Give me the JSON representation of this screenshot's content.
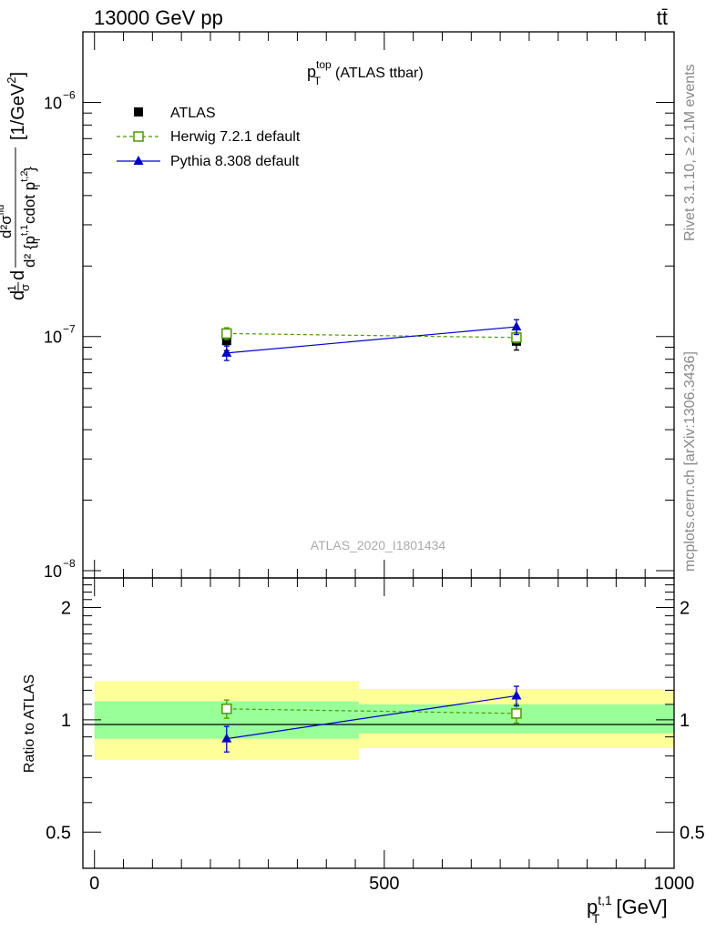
{
  "header": {
    "left": "13000 GeV pp",
    "right": "tt̄"
  },
  "side_text": {
    "top": "Rivet 3.1.10, ≥ 2.1M events",
    "bottom": "mcplots.cern.ch [arXiv:1306.3436]"
  },
  "chart_data": {
    "type": "line",
    "title": "p_T^top (ATLAS ttbar)",
    "title_main": "p",
    "title_sup": "top",
    "title_sub": "T",
    "title_suffix": "(ATLAS ttbar)",
    "analysis_label": "ATLAS_2020_I1801434",
    "xlabel": "p_T^{t,1} [GeV]",
    "xlabel_main": "p",
    "xlabel_sup": "t,1",
    "xlabel_sub": "T",
    "xlabel_suffix": "[GeV]",
    "ylabel": "d^2σ^fid / d^2{p_T^{t,1} cdot p_T^{t,2}} [1/GeV^2]",
    "ylabel_parts": {
      "d1": "d",
      "frac_num": "1",
      "frac_den": "σ",
      "d2": "d",
      "num": "d²σ",
      "num_sup": "fid",
      "den": "d² {p",
      "den_sup1": "t,1",
      "den_sub1": "T",
      "den_mid": "cdot p",
      "den_sup2": "t,2",
      "den_sub2": "T",
      "den_end": "}",
      "units": "[1/GeV",
      "units_sup": "2",
      "units_end": "]"
    },
    "xlim": [
      -20,
      1000
    ],
    "xticks": [
      0,
      500,
      1000
    ],
    "ylim": [
      1e-08,
      2e-06
    ],
    "yscale": "log",
    "yticks_major": [
      {
        "value": 1e-08,
        "base": "10",
        "exp": "−8"
      },
      {
        "value": 1e-07,
        "base": "10",
        "exp": "−7"
      },
      {
        "value": 1e-06,
        "base": "10",
        "exp": "−6"
      }
    ],
    "legend_position": "top-left",
    "series": [
      {
        "name": "ATLAS",
        "style": "data",
        "color": "#000000",
        "marker": "filled-square",
        "points": [
          {
            "x": 228,
            "y": 9.6e-08,
            "err": 9e-09
          },
          {
            "x": 728,
            "y": 9.55e-08,
            "err": 8e-09
          }
        ]
      },
      {
        "name": "Herwig 7.2.1 default",
        "style": "dashed",
        "color": "#4c9900",
        "marker": "open-square",
        "points": [
          {
            "x": 228,
            "y": 1.03e-07,
            "err": 6e-09
          },
          {
            "x": 728,
            "y": 9.9e-08,
            "err": 5e-09
          }
        ]
      },
      {
        "name": "Pythia 8.308 default",
        "style": "solid",
        "color": "#0000cc",
        "marker": "filled-triangle",
        "points": [
          {
            "x": 228,
            "y": 8.5e-08,
            "err": 6e-09
          },
          {
            "x": 728,
            "y": 1.1e-07,
            "err": 8e-09
          }
        ]
      }
    ],
    "ratio": {
      "ylabel": "Ratio to ATLAS",
      "ylim": [
        0.4,
        2.4
      ],
      "yticks": [
        0.5,
        1,
        2
      ],
      "ytick_labels": [
        "0.5",
        "1",
        "2"
      ],
      "xlim": [
        -20,
        1000
      ],
      "bins": [
        {
          "x_low": 0,
          "x_high": 456,
          "inner": [
            0.89,
            1.12
          ],
          "outer": [
            0.78,
            1.27
          ]
        },
        {
          "x_low": 456,
          "x_high": 1000,
          "inner": [
            0.92,
            1.1
          ],
          "outer": [
            0.84,
            1.21
          ]
        }
      ],
      "series": [
        {
          "name": "Herwig 7.2.1 default",
          "points": [
            {
              "x": 228,
              "y": 1.07,
              "err": 0.06
            },
            {
              "x": 728,
              "y": 1.04,
              "err": 0.06
            }
          ]
        },
        {
          "name": "Pythia 8.308 default",
          "points": [
            {
              "x": 228,
              "y": 0.89,
              "err": 0.07
            },
            {
              "x": 728,
              "y": 1.16,
              "err": 0.07
            }
          ]
        }
      ]
    }
  }
}
